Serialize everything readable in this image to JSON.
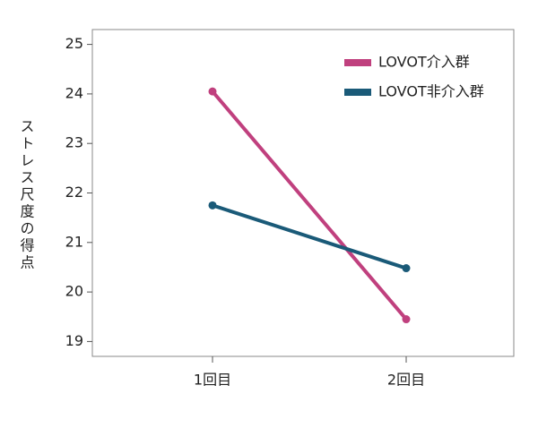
{
  "chart_data": {
    "type": "line",
    "y_label": "ストレス尺度の得点",
    "categories": [
      "1回目",
      "2回目"
    ],
    "series": [
      {
        "name": "LOVOT介入群",
        "color": "#c0407e",
        "values": [
          24.05,
          19.45
        ]
      },
      {
        "name": "LOVOT非介入群",
        "color": "#1a5a78",
        "values": [
          21.75,
          20.48
        ]
      }
    ],
    "ylim": [
      18.7,
      25.3
    ],
    "yticks": [
      19,
      20,
      21,
      22,
      23,
      24,
      25
    ],
    "legend": "upper right"
  }
}
